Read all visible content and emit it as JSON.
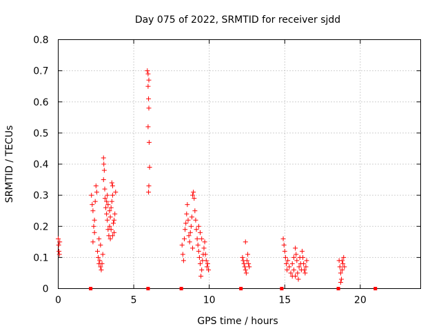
{
  "chart_data": {
    "type": "scatter",
    "title": "Day 075 of 2022, SRMTID for receiver sjdd",
    "xlabel": "GPS time / hours",
    "ylabel": "SRMTID / TECUs",
    "xlim": [
      0,
      24
    ],
    "ylim": [
      0,
      0.8
    ],
    "xticks": [
      0,
      5,
      10,
      15,
      20
    ],
    "xtick_labels": [
      "0",
      "5",
      "10",
      "15",
      "20"
    ],
    "yticks": [
      0,
      0.1,
      0.2,
      0.3,
      0.4,
      0.5,
      0.6,
      0.7,
      0.8
    ],
    "ytick_labels": [
      "0",
      "0.1",
      "0.2",
      "0.3",
      "0.4",
      "0.5",
      "0.6",
      "0.7",
      "0.8"
    ],
    "grid": true,
    "marker": "+",
    "color": "#ff0000",
    "series": [
      {
        "name": "SRMTID",
        "points": [
          [
            0.0,
            0.16
          ],
          [
            0.03,
            0.14
          ],
          [
            0.05,
            0.12
          ],
          [
            0.08,
            0.11
          ],
          [
            0.1,
            0.15
          ],
          [
            2.2,
            0.3
          ],
          [
            2.25,
            0.27
          ],
          [
            2.3,
            0.25
          ],
          [
            2.35,
            0.2
          ],
          [
            2.4,
            0.22
          ],
          [
            2.45,
            0.28
          ],
          [
            2.5,
            0.33
          ],
          [
            2.55,
            0.31
          ],
          [
            2.3,
            0.15
          ],
          [
            2.4,
            0.18
          ],
          [
            2.6,
            0.12
          ],
          [
            2.65,
            0.1
          ],
          [
            2.7,
            0.08
          ],
          [
            2.75,
            0.09
          ],
          [
            2.8,
            0.07
          ],
          [
            2.85,
            0.06
          ],
          [
            2.9,
            0.08
          ],
          [
            2.95,
            0.11
          ],
          [
            2.7,
            0.16
          ],
          [
            2.8,
            0.14
          ],
          [
            3.0,
            0.42
          ],
          [
            3.02,
            0.4
          ],
          [
            3.05,
            0.38
          ],
          [
            3.0,
            0.35
          ],
          [
            3.08,
            0.32
          ],
          [
            3.1,
            0.29
          ],
          [
            3.15,
            0.26
          ],
          [
            3.2,
            0.24
          ],
          [
            3.25,
            0.22
          ],
          [
            3.3,
            0.19
          ],
          [
            3.35,
            0.17
          ],
          [
            3.4,
            0.2
          ],
          [
            3.45,
            0.23
          ],
          [
            3.5,
            0.26
          ],
          [
            3.55,
            0.28
          ],
          [
            3.6,
            0.3
          ],
          [
            3.55,
            0.34
          ],
          [
            3.6,
            0.33
          ],
          [
            3.65,
            0.21
          ],
          [
            3.7,
            0.18
          ],
          [
            3.2,
            0.28
          ],
          [
            3.25,
            0.3
          ],
          [
            3.3,
            0.27
          ],
          [
            3.4,
            0.25
          ],
          [
            3.45,
            0.16
          ],
          [
            3.5,
            0.19
          ],
          [
            3.6,
            0.17
          ],
          [
            3.7,
            0.22
          ],
          [
            3.75,
            0.24
          ],
          [
            3.8,
            0.31
          ],
          [
            5.9,
            0.7
          ],
          [
            5.95,
            0.69
          ],
          [
            6.0,
            0.67
          ],
          [
            5.95,
            0.65
          ],
          [
            5.98,
            0.61
          ],
          [
            6.0,
            0.58
          ],
          [
            5.95,
            0.52
          ],
          [
            6.02,
            0.47
          ],
          [
            6.05,
            0.39
          ],
          [
            6.0,
            0.33
          ],
          [
            5.98,
            0.31
          ],
          [
            8.2,
            0.14
          ],
          [
            8.25,
            0.11
          ],
          [
            8.3,
            0.09
          ],
          [
            8.35,
            0.16
          ],
          [
            8.4,
            0.19
          ],
          [
            8.45,
            0.21
          ],
          [
            8.5,
            0.24
          ],
          [
            8.55,
            0.27
          ],
          [
            8.6,
            0.22
          ],
          [
            8.65,
            0.17
          ],
          [
            8.7,
            0.15
          ],
          [
            8.75,
            0.18
          ],
          [
            8.8,
            0.2
          ],
          [
            8.85,
            0.23
          ],
          [
            8.9,
            0.3
          ],
          [
            8.95,
            0.31
          ],
          [
            9.0,
            0.29
          ],
          [
            9.05,
            0.25
          ],
          [
            9.1,
            0.22
          ],
          [
            9.15,
            0.19
          ],
          [
            9.2,
            0.16
          ],
          [
            9.25,
            0.14
          ],
          [
            9.3,
            0.12
          ],
          [
            9.35,
            0.1
          ],
          [
            9.4,
            0.08
          ],
          [
            9.45,
            0.04
          ],
          [
            9.5,
            0.06
          ],
          [
            9.55,
            0.09
          ],
          [
            9.6,
            0.11
          ],
          [
            9.65,
            0.13
          ],
          [
            9.7,
            0.15
          ],
          [
            9.75,
            0.11
          ],
          [
            9.8,
            0.09
          ],
          [
            9.85,
            0.07
          ],
          [
            9.9,
            0.08
          ],
          [
            9.95,
            0.06
          ],
          [
            9.3,
            0.2
          ],
          [
            9.4,
            0.18
          ],
          [
            9.5,
            0.16
          ],
          [
            8.9,
            0.13
          ],
          [
            12.2,
            0.1
          ],
          [
            12.25,
            0.09
          ],
          [
            12.3,
            0.08
          ],
          [
            12.35,
            0.07
          ],
          [
            12.4,
            0.06
          ],
          [
            12.45,
            0.05
          ],
          [
            12.5,
            0.09
          ],
          [
            12.55,
            0.11
          ],
          [
            12.4,
            0.15
          ],
          [
            12.6,
            0.08
          ],
          [
            12.65,
            0.07
          ],
          [
            14.9,
            0.16
          ],
          [
            14.95,
            0.14
          ],
          [
            15.0,
            0.12
          ],
          [
            15.05,
            0.1
          ],
          [
            15.1,
            0.08
          ],
          [
            15.15,
            0.06
          ],
          [
            15.2,
            0.09
          ],
          [
            15.3,
            0.07
          ],
          [
            15.4,
            0.05
          ],
          [
            15.5,
            0.04
          ],
          [
            15.6,
            0.06
          ],
          [
            15.7,
            0.13
          ],
          [
            15.75,
            0.11
          ],
          [
            15.8,
            0.09
          ],
          [
            15.85,
            0.05
          ],
          [
            15.9,
            0.03
          ],
          [
            15.95,
            0.07
          ],
          [
            16.0,
            0.1
          ],
          [
            16.05,
            0.08
          ],
          [
            16.1,
            0.06
          ],
          [
            16.15,
            0.12
          ],
          [
            16.2,
            0.1
          ],
          [
            16.25,
            0.08
          ],
          [
            16.3,
            0.06
          ],
          [
            16.35,
            0.05
          ],
          [
            16.4,
            0.07
          ],
          [
            16.45,
            0.09
          ],
          [
            15.5,
            0.08
          ],
          [
            15.6,
            0.1
          ],
          [
            15.7,
            0.04
          ],
          [
            18.6,
            0.09
          ],
          [
            18.65,
            0.07
          ],
          [
            18.7,
            0.05
          ],
          [
            18.75,
            0.03
          ],
          [
            18.8,
            0.06
          ],
          [
            18.85,
            0.08
          ],
          [
            18.9,
            0.1
          ],
          [
            18.95,
            0.07
          ],
          [
            18.7,
            0.02
          ],
          [
            18.8,
            0.09
          ]
        ]
      },
      {
        "name": "markers",
        "points": [
          [
            2.15,
            0.0
          ],
          [
            5.95,
            0.0
          ],
          [
            8.15,
            0.0
          ],
          [
            12.1,
            0.0
          ],
          [
            14.8,
            0.0
          ],
          [
            18.55,
            0.0
          ],
          [
            21.0,
            0.0
          ]
        ]
      }
    ]
  }
}
